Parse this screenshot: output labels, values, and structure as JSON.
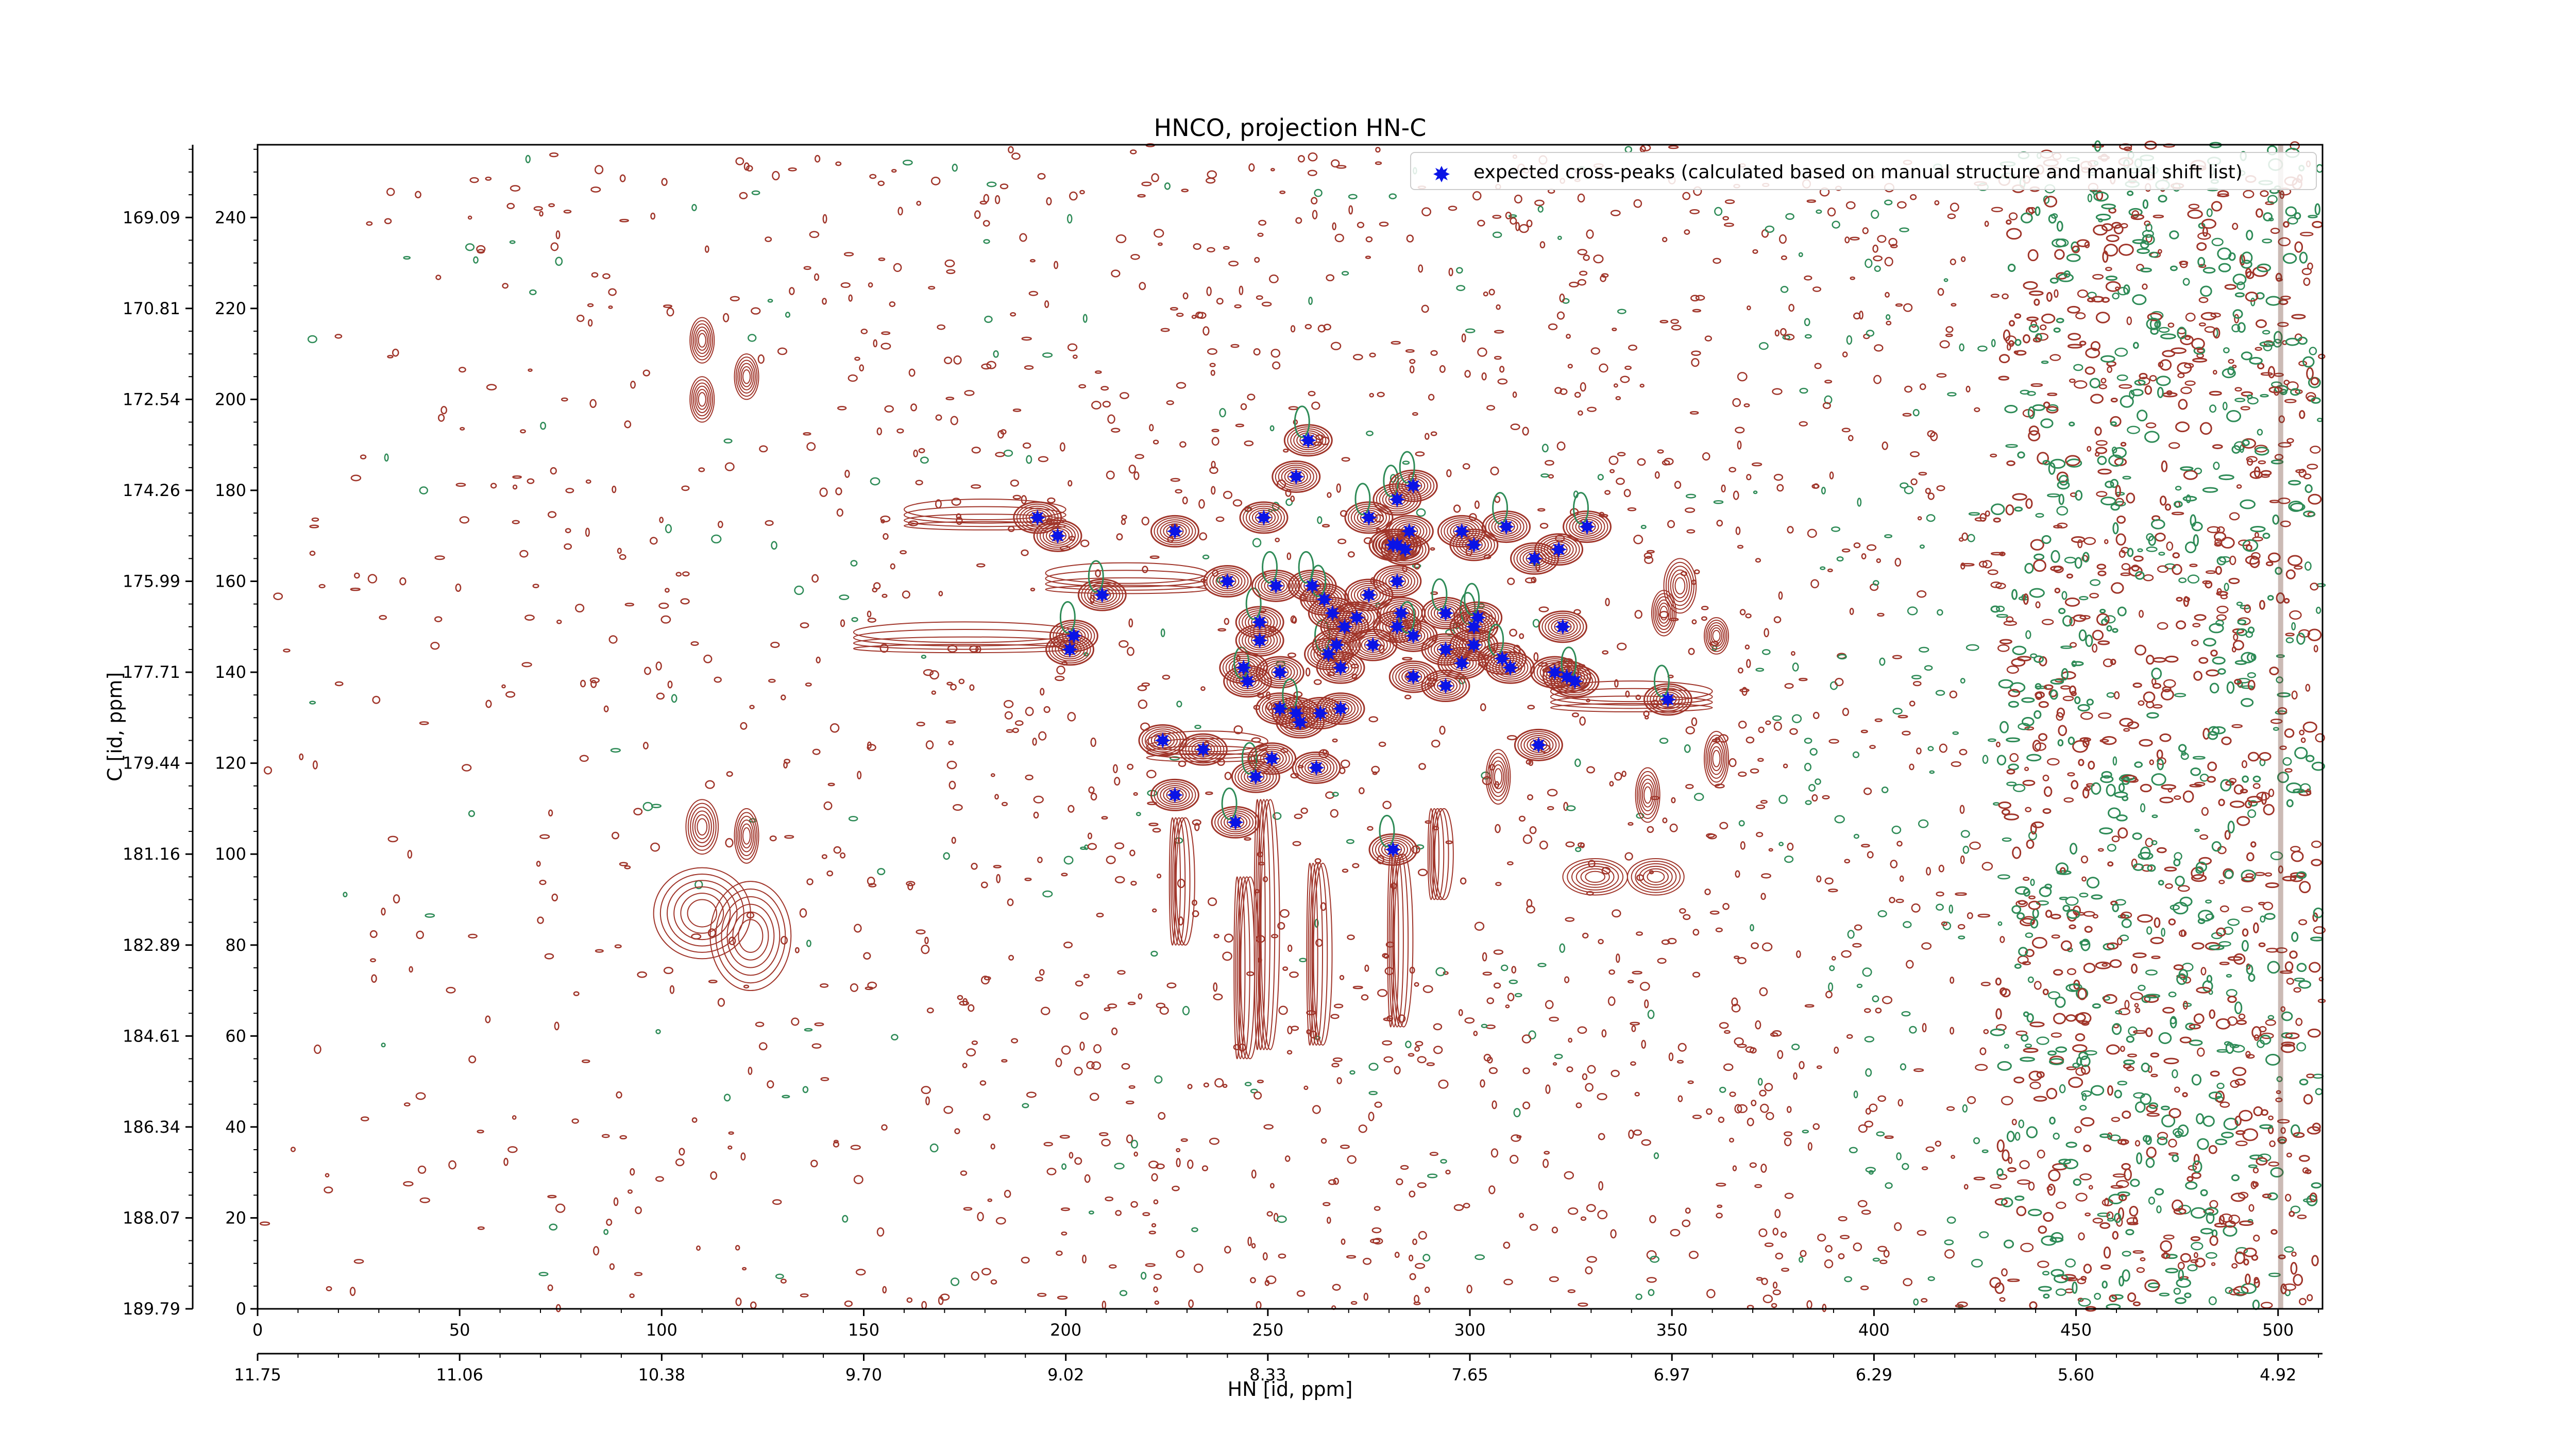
{
  "chart_data": {
    "type": "scatter",
    "title": "HNCO, projection HN-C",
    "xlabel": "HN [id, ppm]",
    "ylabel": "C [id, ppm]",
    "xlim": [
      0,
      511
    ],
    "ylim": [
      0,
      256
    ],
    "x_index_ticks": [
      "0",
      "50",
      "100",
      "150",
      "200",
      "250",
      "300",
      "350",
      "400",
      "450",
      "500"
    ],
    "x_ppm_ticks": [
      "11.75",
      "11.06",
      "10.38",
      "9.70",
      "9.02",
      "8.33",
      "7.65",
      "6.97",
      "6.29",
      "5.60",
      "4.92"
    ],
    "y_index_ticks": [
      "0",
      "20",
      "40",
      "60",
      "80",
      "100",
      "120",
      "140",
      "160",
      "180",
      "200",
      "220",
      "240"
    ],
    "y_ppm_ticks": [
      "189.79",
      "188.07",
      "186.34",
      "184.61",
      "182.89",
      "181.16",
      "179.44",
      "177.71",
      "175.99",
      "174.26",
      "172.54",
      "170.81",
      "169.09"
    ],
    "legend": {
      "position": "top-right",
      "label": "expected cross-peaks (calculated based on manual structure and manual shift list)",
      "color": "#0a14e6"
    },
    "colors": {
      "positive_contours": "#a0352a",
      "negative_contours": "#2e8b57",
      "peak_marker": "#0a14e6"
    },
    "series": [
      {
        "name": "expected cross-peaks (calculated based on manual structure and manual shift list)",
        "points": [
          [
            193,
            174
          ],
          [
            198,
            170
          ],
          [
            202,
            148
          ],
          [
            201,
            145
          ],
          [
            209,
            157
          ],
          [
            227,
            171
          ],
          [
            224,
            125
          ],
          [
            227,
            113
          ],
          [
            234,
            123
          ],
          [
            240,
            160
          ],
          [
            242,
            107
          ],
          [
            244,
            141
          ],
          [
            245,
            138
          ],
          [
            247,
            117
          ],
          [
            248,
            151
          ],
          [
            248,
            147
          ],
          [
            249,
            174
          ],
          [
            251,
            121
          ],
          [
            252,
            159
          ],
          [
            253,
            140
          ],
          [
            253,
            132
          ],
          [
            257,
            131
          ],
          [
            257,
            183
          ],
          [
            258,
            129
          ],
          [
            260,
            191
          ],
          [
            261,
            159
          ],
          [
            262,
            119
          ],
          [
            263,
            131
          ],
          [
            264,
            156
          ],
          [
            265,
            144
          ],
          [
            266,
            153
          ],
          [
            267,
            146
          ],
          [
            268,
            132
          ],
          [
            268,
            141
          ],
          [
            269,
            150
          ],
          [
            272,
            152
          ],
          [
            275,
            157
          ],
          [
            275,
            174
          ],
          [
            276,
            146
          ],
          [
            281,
            168
          ],
          [
            281,
            101
          ],
          [
            282,
            178
          ],
          [
            282,
            168
          ],
          [
            282,
            160
          ],
          [
            282,
            150
          ],
          [
            283,
            153
          ],
          [
            284,
            167
          ],
          [
            285,
            171
          ],
          [
            286,
            181
          ],
          [
            286,
            148
          ],
          [
            286,
            139
          ],
          [
            294,
            153
          ],
          [
            294,
            137
          ],
          [
            294,
            145
          ],
          [
            298,
            171
          ],
          [
            298,
            142
          ],
          [
            301,
            168
          ],
          [
            301,
            150
          ],
          [
            301,
            146
          ],
          [
            302,
            152
          ],
          [
            308,
            143
          ],
          [
            309,
            172
          ],
          [
            310,
            141
          ],
          [
            316,
            165
          ],
          [
            317,
            124
          ],
          [
            321,
            140
          ],
          [
            322,
            167
          ],
          [
            323,
            150
          ],
          [
            324,
            139
          ],
          [
            326,
            138
          ],
          [
            329,
            172
          ],
          [
            349,
            134
          ]
        ]
      }
    ]
  }
}
